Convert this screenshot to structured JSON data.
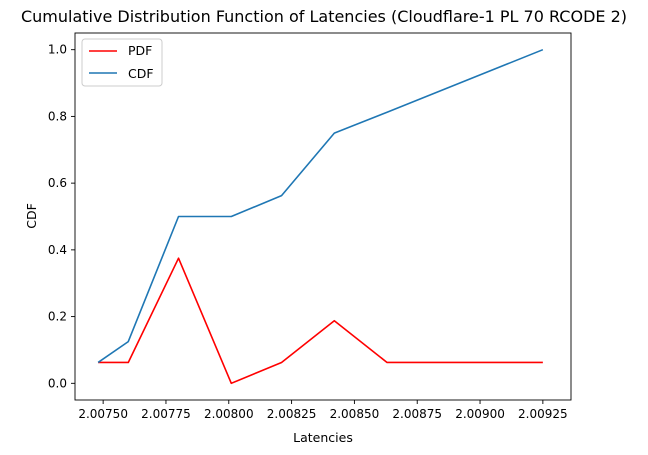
{
  "chart_data": {
    "type": "line",
    "title": "Cumulative Distribution Function of Latencies (Cloudflare-1 PL 70 RCODE 2)",
    "xlabel": "Latencies",
    "ylabel": "CDF",
    "xlim": [
      2.007388,
      2.009362
    ],
    "ylim": [
      -0.05,
      1.05
    ],
    "x_ticks": [
      2.0075,
      2.00775,
      2.008,
      2.00825,
      2.0085,
      2.00875,
      2.009,
      2.00925
    ],
    "x_tick_labels": [
      "2.00750",
      "2.00775",
      "2.00800",
      "2.00825",
      "2.00850",
      "2.00875",
      "2.00900",
      "2.00925"
    ],
    "y_ticks": [
      0.0,
      0.2,
      0.4,
      0.6,
      0.8,
      1.0
    ],
    "y_tick_labels": [
      "0.0",
      "0.2",
      "0.4",
      "0.6",
      "0.8",
      "1.0"
    ],
    "grid": false,
    "legend_position": "top-left",
    "series": [
      {
        "name": "PDF",
        "color": "#ff0000",
        "x": [
          2.00748,
          2.0076,
          2.0078,
          2.00801,
          2.00821,
          2.00842,
          2.00863,
          2.00925
        ],
        "y": [
          0.0625,
          0.0625,
          0.375,
          0.0,
          0.0625,
          0.1875,
          0.0625,
          0.0625
        ]
      },
      {
        "name": "CDF",
        "color": "#1f77b4",
        "x": [
          2.00748,
          2.0076,
          2.0078,
          2.00801,
          2.00821,
          2.00842,
          2.00863,
          2.00925
        ],
        "y": [
          0.0625,
          0.125,
          0.5,
          0.5,
          0.5625,
          0.75,
          0.8125,
          1.0
        ]
      }
    ]
  }
}
